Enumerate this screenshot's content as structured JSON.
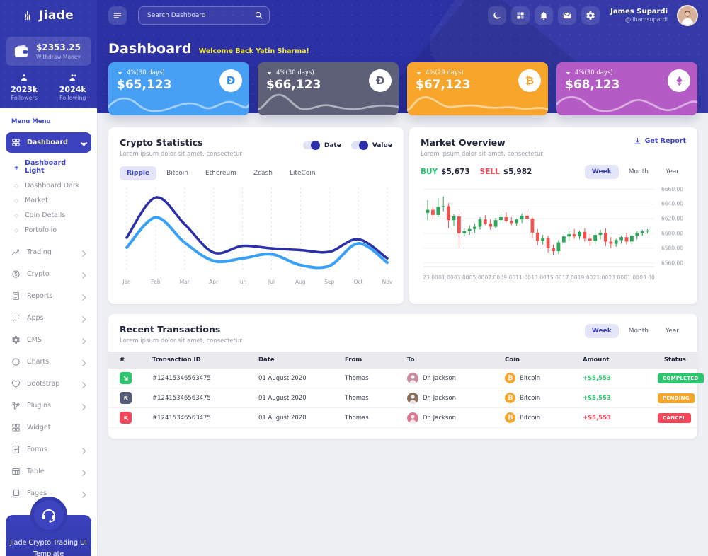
{
  "app": {
    "brand": "Jiade"
  },
  "topbar": {
    "search_placeholder": "Search Dashboard",
    "icons": [
      "moon",
      "grid",
      "bell",
      "mail",
      "gear"
    ],
    "user": {
      "name": "James Supardi",
      "handle": "@ilhamsupardi"
    }
  },
  "sidebar": {
    "wallet": {
      "amount": "$2353.25",
      "label": "Withdraw Money"
    },
    "stats": [
      {
        "icon": "person",
        "value": "2023k",
        "label": "Followers"
      },
      {
        "icon": "person-plus",
        "value": "2024k",
        "label": "Following"
      }
    ],
    "section_label": "Menu Menu",
    "menu": [
      {
        "label": "Dashboard",
        "icon": "grid2",
        "active": true,
        "expanded": true,
        "children": [
          {
            "label": "Dashboard Light",
            "active": true
          },
          {
            "label": "Dashboard Dark",
            "active": false
          },
          {
            "label": "Market",
            "active": false
          },
          {
            "label": "Coin Details",
            "active": false
          },
          {
            "label": "Portofolio",
            "active": false
          }
        ]
      },
      {
        "label": "Trading",
        "icon": "trend",
        "arrow": true
      },
      {
        "label": "Crypto",
        "icon": "dollar",
        "arrow": true
      },
      {
        "label": "Reports",
        "icon": "report",
        "arrow": true
      },
      {
        "label": "Apps",
        "icon": "apps",
        "arrow": true
      },
      {
        "label": "CMS",
        "icon": "gear",
        "arrow": true
      },
      {
        "label": "Charts",
        "icon": "circle",
        "arrow": true
      },
      {
        "label": "Bootstrap",
        "icon": "heart",
        "arrow": true
      },
      {
        "label": "Plugins",
        "icon": "plug",
        "arrow": true
      },
      {
        "label": "Widget",
        "icon": "widget",
        "arrow": false
      },
      {
        "label": "Forms",
        "icon": "form",
        "arrow": true
      },
      {
        "label": "Table",
        "icon": "table",
        "arrow": true
      },
      {
        "label": "Pages",
        "icon": "pages",
        "arrow": true
      }
    ],
    "promo": {
      "text": "Jiade Crypto Trading UI Template",
      "icon": "headset"
    }
  },
  "header": {
    "title": "Dashboard",
    "welcome": "Welcome Back Yatin Sharma!"
  },
  "stat_cards": [
    {
      "change": "4%(30 days)",
      "value": "$65,123",
      "coin": "dash",
      "color": "#47a0f4",
      "glyph_color": "#2e8de8"
    },
    {
      "change": "4%(30 days)",
      "value": "$66,123",
      "coin": "dash",
      "color": "#5e6078",
      "glyph_color": "#5e6078"
    },
    {
      "change": "4%(29 days)",
      "value": "$67,123",
      "coin": "bitcoin",
      "color": "#f7a62b",
      "glyph_color": "#f7a62b"
    },
    {
      "change": "4%(30 days)",
      "value": "$68,123",
      "coin": "ethereum",
      "color": "#b55bc6",
      "glyph_color": "#b55bc6"
    }
  ],
  "crypto_stats": {
    "title": "Crypto Statistics",
    "subtitle": "Lorem ipsum dolor sit amet, consectetur",
    "toggles": [
      {
        "label": "Date",
        "on": true
      },
      {
        "label": "Value",
        "on": true
      }
    ],
    "tabs": [
      "Ripple",
      "Bitcoin",
      "Ethereum",
      "Zcash",
      "LiteCoin"
    ],
    "active_tab": "Ripple"
  },
  "market": {
    "title": "Market Overview",
    "subtitle": "Lorem ipsum dolor sit amet, consectetur",
    "report_label": "Get Report",
    "buy_label": "BUY",
    "buy_value": "$5,673",
    "sell_label": "SELL",
    "sell_value": "$5,982",
    "tabs": [
      "Week",
      "Month",
      "Year"
    ],
    "active_tab": "Week"
  },
  "transactions": {
    "title": "Recent Transactions",
    "subtitle": "Lorem ipsum dolor sit amet, consectetur",
    "tabs": [
      "Week",
      "Month",
      "Year"
    ],
    "active_tab": "Week",
    "headers": [
      "#",
      "Transaction ID",
      "Date",
      "From",
      "To",
      "Coin",
      "Amount",
      "Status"
    ],
    "rows": [
      {
        "dir": "in",
        "dir_color": "#2dc66f",
        "id": "#12415346563475",
        "date": "01 August 2020",
        "from": "Thomas",
        "to": "Dr. Jackson",
        "coin": "Bitcoin",
        "amount": "+$5,553",
        "amount_color": "#2dc66f",
        "status": "COMPLETED",
        "status_color": "#2dc66f",
        "avatar_color": "#c98da2"
      },
      {
        "dir": "out",
        "dir_color": "#565b7a",
        "id": "#12415346563475",
        "date": "01 August 2020",
        "from": "Thomas",
        "to": "Dr. Jackson",
        "coin": "Bitcoin",
        "amount": "+$5,553",
        "amount_color": "#2dc66f",
        "status": "PENDING",
        "status_color": "#f7a62b",
        "avatar_color": "#8a6f5c"
      },
      {
        "dir": "out",
        "dir_color": "#f4485a",
        "id": "#12415346563475",
        "date": "01 August 2020",
        "from": "Thomas",
        "to": "Dr. Jackson",
        "coin": "Bitcoin",
        "amount": "+$5,553",
        "amount_color": "#f4485a",
        "status": "CANCEL",
        "status_color": "#f4485a",
        "avatar_color": "#d97a93"
      }
    ]
  },
  "chart_data": [
    {
      "type": "line",
      "title": "Crypto Statistics",
      "categories": [
        "Jan",
        "Feb",
        "Mar",
        "Apr",
        "jun",
        "Jul",
        "Aug",
        "Sep",
        "Oct",
        "Nov"
      ],
      "series": [
        {
          "name": "Date",
          "color": "#2b2fa8",
          "values": [
            40,
            88,
            56,
            22,
            30,
            27,
            25,
            23,
            38,
            15
          ]
        },
        {
          "name": "Value",
          "color": "#38a1f7",
          "values": [
            28,
            64,
            34,
            12,
            15,
            20,
            7,
            6,
            33,
            10
          ]
        }
      ],
      "ylim": [
        0,
        100
      ],
      "grid": "vertical-dashed",
      "legend": "toggles-top-right"
    },
    {
      "type": "candlestick",
      "title": "Market Overview",
      "x_ticks": [
        "23:00",
        "01:00",
        "03:00",
        "05:00",
        "07:00",
        "09:00",
        "11:00",
        "13:00",
        "15:00",
        "17:00",
        "19:00",
        "21:00",
        "23:00",
        "01:00",
        "03:00"
      ],
      "y_ticks": [
        6660.0,
        6640.0,
        6620.0,
        6600.0,
        6580.0,
        6560.0
      ],
      "ylim": [
        6555,
        6668
      ],
      "up_color": "#2ca558",
      "down_color": "#ef5350",
      "ohlc": [
        [
          6628,
          6645,
          6618,
          6632
        ],
        [
          6632,
          6638,
          6619,
          6625
        ],
        [
          6625,
          6648,
          6622,
          6636
        ],
        [
          6636,
          6650,
          6630,
          6637
        ],
        [
          6637,
          6641,
          6607,
          6618
        ],
        [
          6618,
          6626,
          6610,
          6623
        ],
        [
          6623,
          6627,
          6581,
          6600
        ],
        [
          6600,
          6607,
          6596,
          6603
        ],
        [
          6603,
          6611,
          6598,
          6606
        ],
        [
          6606,
          6613,
          6601,
          6609
        ],
        [
          6609,
          6622,
          6605,
          6619
        ],
        [
          6619,
          6625,
          6611,
          6613
        ],
        [
          6613,
          6619,
          6605,
          6609
        ],
        [
          6609,
          6621,
          6607,
          6618
        ],
        [
          6618,
          6626,
          6613,
          6622
        ],
        [
          6622,
          6629,
          6615,
          6617
        ],
        [
          6617,
          6622,
          6611,
          6614
        ],
        [
          6614,
          6620,
          6610,
          6619
        ],
        [
          6619,
          6627,
          6614,
          6624
        ],
        [
          6624,
          6631,
          6618,
          6620
        ],
        [
          6620,
          6622,
          6594,
          6601
        ],
        [
          6601,
          6606,
          6584,
          6590
        ],
        [
          6590,
          6598,
          6585,
          6594
        ],
        [
          6594,
          6597,
          6574,
          6580
        ],
        [
          6580,
          6585,
          6571,
          6576
        ],
        [
          6576,
          6591,
          6572,
          6588
        ],
        [
          6588,
          6599,
          6585,
          6596
        ],
        [
          6596,
          6603,
          6590,
          6599
        ],
        [
          6599,
          6606,
          6593,
          6596
        ],
        [
          6596,
          6604,
          6592,
          6602
        ],
        [
          6602,
          6607,
          6589,
          6593
        ],
        [
          6593,
          6599,
          6583,
          6590
        ],
        [
          6590,
          6601,
          6586,
          6598
        ],
        [
          6598,
          6605,
          6592,
          6601
        ],
        [
          6601,
          6607,
          6583,
          6589
        ],
        [
          6589,
          6595,
          6580,
          6586
        ],
        [
          6586,
          6593,
          6582,
          6591
        ],
        [
          6591,
          6597,
          6586,
          6595
        ],
        [
          6595,
          6601,
          6585,
          6589
        ],
        [
          6589,
          6599,
          6586,
          6597
        ],
        [
          6597,
          6603,
          6592,
          6601
        ],
        [
          6601,
          6605,
          6597,
          6603
        ],
        [
          6603,
          6606,
          6600,
          6604
        ]
      ]
    }
  ]
}
